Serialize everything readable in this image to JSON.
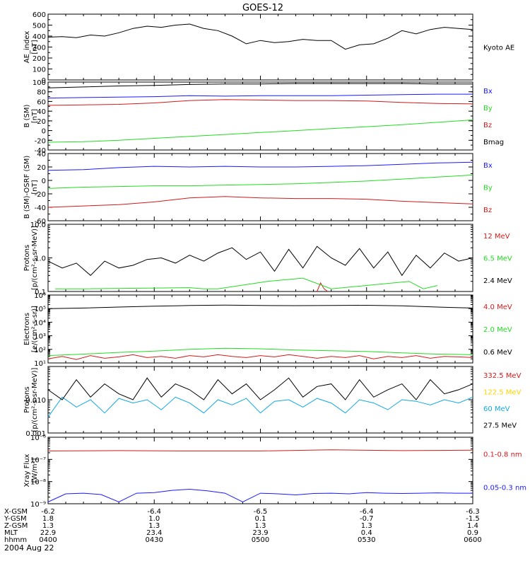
{
  "title": "GOES-12",
  "date_label": "2004 Aug 22",
  "colors": {
    "black": "#000000",
    "blue": "#1a1aff",
    "green": "#22dd22",
    "red": "#d41a1a",
    "yellow": "#ffd200",
    "cyan": "#11a8e6"
  },
  "time_axis": {
    "start": "0400",
    "end": "0600",
    "ticks": [
      "0400",
      "0430",
      "0500",
      "0530",
      "0600"
    ]
  },
  "ephemeris": {
    "rows": [
      {
        "label": "X-GSM",
        "values": [
          "-6.2",
          "-6.4",
          "-6.5",
          "-6.4",
          "-6.3"
        ]
      },
      {
        "label": "Y-GSM",
        "values": [
          "1.8",
          "1.0",
          "0.1",
          "-0.7",
          "-1.5"
        ]
      },
      {
        "label": "Z-GSM",
        "values": [
          "1.3",
          "1.3",
          "1.3",
          "1.3",
          "1.4"
        ]
      },
      {
        "label": "MLT",
        "values": [
          "22.9",
          "23.4",
          "23.9",
          "0.4",
          "0.9"
        ]
      },
      {
        "label": "hhmm",
        "values": [
          "0400",
          "0430",
          "0500",
          "0530",
          "0600"
        ]
      }
    ]
  },
  "chart_data": [
    {
      "type": "line",
      "ylabel": [
        "AE_index",
        "[nT]"
      ],
      "yscale": "linear",
      "ylim": [
        0,
        600
      ],
      "yticks": [
        "0",
        "100",
        "200",
        "300",
        "400",
        "500",
        "600"
      ],
      "series": [
        {
          "name": "Kyoto AE",
          "color": "black",
          "x": [
            0,
            4,
            8,
            12,
            16,
            20,
            24,
            28,
            32,
            36,
            40,
            44,
            48,
            52,
            56,
            60,
            64,
            68,
            72,
            76,
            80,
            84,
            88,
            92,
            96,
            100,
            104,
            108,
            112,
            116,
            120
          ],
          "y": [
            390,
            395,
            385,
            410,
            400,
            430,
            470,
            490,
            480,
            500,
            510,
            470,
            450,
            400,
            330,
            360,
            340,
            350,
            370,
            360,
            360,
            280,
            320,
            330,
            380,
            450,
            420,
            460,
            480,
            470,
            460
          ]
        }
      ]
    },
    {
      "type": "line",
      "ylabel": [
        "B (SM)",
        "[nT]"
      ],
      "yscale": "linear",
      "ylim": [
        -40,
        100
      ],
      "yticks": [
        "-40",
        "-20",
        "0",
        "20",
        "40",
        "60",
        "80",
        "100"
      ],
      "series": [
        {
          "name": "Bx",
          "color": "blue",
          "x": [
            0,
            10,
            20,
            30,
            40,
            50,
            60,
            70,
            80,
            90,
            100,
            110,
            120
          ],
          "y": [
            67,
            68,
            69,
            70,
            72,
            71,
            72,
            72,
            72,
            73,
            74,
            75,
            75
          ]
        },
        {
          "name": "By",
          "color": "green",
          "x": [
            0,
            10,
            20,
            30,
            40,
            50,
            60,
            70,
            80,
            90,
            100,
            110,
            120
          ],
          "y": [
            -24,
            -23,
            -20,
            -16,
            -12,
            -8,
            -4,
            0,
            4,
            8,
            12,
            17,
            22
          ]
        },
        {
          "name": "Bz",
          "color": "red",
          "x": [
            0,
            10,
            20,
            30,
            40,
            50,
            60,
            70,
            80,
            90,
            100,
            110,
            120
          ],
          "y": [
            52,
            53,
            54,
            57,
            62,
            64,
            63,
            62,
            62,
            61,
            58,
            56,
            55
          ]
        },
        {
          "name": "Bmag",
          "color": "black",
          "x": [
            0,
            10,
            20,
            30,
            40,
            50,
            60,
            70,
            80,
            90,
            100,
            110,
            120
          ],
          "y": [
            88,
            90,
            92,
            93,
            95,
            96,
            96,
            97,
            97,
            97,
            97,
            96,
            96
          ]
        }
      ]
    },
    {
      "type": "line",
      "ylabel": [
        "B (SM)-OSRF (SM)",
        "[nT]"
      ],
      "yscale": "linear",
      "ylim": [
        -60,
        40
      ],
      "yticks": [
        "-60",
        "-40",
        "-20",
        "0",
        "20",
        "40"
      ],
      "series": [
        {
          "name": "Bx",
          "color": "blue",
          "x": [
            0,
            10,
            20,
            30,
            40,
            50,
            60,
            70,
            80,
            90,
            100,
            110,
            120
          ],
          "y": [
            15,
            16,
            19,
            21,
            20,
            21,
            20,
            20,
            21,
            22,
            24,
            26,
            27
          ]
        },
        {
          "name": "By",
          "color": "green",
          "x": [
            0,
            10,
            20,
            30,
            40,
            50,
            60,
            70,
            80,
            90,
            100,
            110,
            120
          ],
          "y": [
            -12,
            -10,
            -9,
            -8,
            -8,
            -7,
            -6,
            -5,
            -3,
            -1,
            2,
            5,
            8
          ]
        },
        {
          "name": "Bz",
          "color": "red",
          "x": [
            0,
            10,
            20,
            30,
            40,
            50,
            60,
            70,
            80,
            90,
            100,
            110,
            120
          ],
          "y": [
            -40,
            -38,
            -36,
            -32,
            -26,
            -24,
            -26,
            -27,
            -27,
            -28,
            -31,
            -33,
            -35
          ]
        }
      ]
    },
    {
      "type": "line",
      "ylabel": [
        "Protons",
        "[p/(cm²-s-sr-MeV)]"
      ],
      "yscale": "log",
      "ylim": [
        0.1,
        10
      ],
      "yticks": [
        "0.1",
        "1.0",
        "10.0"
      ],
      "series": [
        {
          "name": "12 MeV",
          "color": "red",
          "x": [
            76,
            77,
            78,
            79
          ],
          "y": [
            0.1,
            0.18,
            0.12,
            0.1
          ]
        },
        {
          "name": "6.5 MeV",
          "color": "green",
          "x": [
            2,
            6,
            10,
            40,
            44,
            48,
            62,
            72,
            80,
            102,
            106,
            110
          ],
          "y": [
            0.12,
            0.12,
            0.12,
            0.13,
            0.12,
            0.12,
            0.2,
            0.25,
            0.12,
            0.2,
            0.12,
            0.15
          ]
        },
        {
          "name": "2.4 MeV",
          "color": "black",
          "x": [
            0,
            4,
            8,
            12,
            16,
            20,
            24,
            28,
            32,
            36,
            40,
            44,
            48,
            52,
            56,
            60,
            64,
            68,
            72,
            76,
            80,
            84,
            88,
            92,
            96,
            100,
            104,
            108,
            112,
            116,
            120
          ],
          "y": [
            0.8,
            0.5,
            0.7,
            0.3,
            0.8,
            0.5,
            0.6,
            0.9,
            1.0,
            0.7,
            1.2,
            0.8,
            1.4,
            2.0,
            0.9,
            1.5,
            0.4,
            1.8,
            0.5,
            2.2,
            1.0,
            0.6,
            1.9,
            0.5,
            1.5,
            0.3,
            1.2,
            0.5,
            1.4,
            0.8,
            1.0
          ]
        }
      ]
    },
    {
      "type": "line",
      "ylabel": [
        "Electrons",
        "[e/(cm²-s-sr)]"
      ],
      "yscale": "log",
      "ylim": [
        10,
        1000000
      ],
      "yticks": [
        "10¹",
        "10²",
        "10³",
        "10⁴",
        "10⁵",
        "10⁶"
      ],
      "series": [
        {
          "name": "4.0 MeV",
          "color": "red",
          "x": [
            0,
            4,
            8,
            12,
            16,
            20,
            24,
            28,
            32,
            36,
            40,
            44,
            48,
            52,
            56,
            60,
            64,
            68,
            72,
            76,
            80,
            84,
            88,
            92,
            96,
            100,
            104,
            108,
            112,
            116,
            120
          ],
          "y": [
            20,
            30,
            18,
            35,
            22,
            28,
            40,
            25,
            30,
            22,
            35,
            28,
            40,
            30,
            25,
            35,
            28,
            40,
            30,
            22,
            30,
            25,
            35,
            20,
            30,
            25,
            35,
            22,
            30,
            28,
            25
          ]
        },
        {
          "name": "2.0 MeV",
          "color": "green",
          "x": [
            0,
            10,
            20,
            30,
            40,
            50,
            60,
            70,
            80,
            90,
            100,
            110,
            120
          ],
          "y": [
            35,
            45,
            60,
            75,
            100,
            120,
            110,
            90,
            80,
            70,
            55,
            45,
            40
          ]
        },
        {
          "name": "0.6 MeV",
          "color": "black",
          "x": [
            0,
            10,
            20,
            30,
            40,
            50,
            60,
            70,
            80,
            90,
            100,
            110,
            120
          ],
          "y": [
            100000,
            110000,
            130000,
            150000,
            170000,
            180000,
            170000,
            165000,
            170000,
            175000,
            160000,
            130000,
            110000
          ]
        }
      ]
    },
    {
      "type": "line",
      "ylabel": [
        "Protons",
        "[p/(cm²-s-sr-MeV)]"
      ],
      "yscale": "log",
      "ylim": [
        0.001,
        0.1
      ],
      "yticks": [
        "0.001",
        "0.010"
      ],
      "series": [
        {
          "name": "332.5 MeV",
          "color": "red",
          "x": [],
          "y": []
        },
        {
          "name": "122.5 MeV",
          "color": "yellow",
          "x": [],
          "y": []
        },
        {
          "name": "60 MeV",
          "color": "cyan",
          "x": [
            0,
            4,
            8,
            12,
            16,
            20,
            24,
            28,
            32,
            36,
            40,
            44,
            48,
            52,
            56,
            60,
            64,
            68,
            72,
            76,
            80,
            84,
            88,
            92,
            96,
            100,
            104,
            108,
            112,
            116,
            120
          ],
          "y": [
            0.003,
            0.012,
            0.006,
            0.01,
            0.004,
            0.011,
            0.008,
            0.01,
            0.005,
            0.012,
            0.008,
            0.004,
            0.01,
            0.007,
            0.011,
            0.004,
            0.009,
            0.01,
            0.006,
            0.011,
            0.008,
            0.004,
            0.01,
            0.008,
            0.005,
            0.01,
            0.009,
            0.007,
            0.01,
            0.008,
            0.012
          ]
        },
        {
          "name": "27.5 MeV",
          "color": "black",
          "x": [
            0,
            4,
            8,
            12,
            16,
            20,
            24,
            28,
            32,
            36,
            40,
            44,
            48,
            52,
            56,
            60,
            64,
            68,
            72,
            76,
            80,
            84,
            88,
            92,
            96,
            100,
            104,
            108,
            112,
            116,
            120
          ],
          "y": [
            0.02,
            0.01,
            0.04,
            0.012,
            0.03,
            0.015,
            0.01,
            0.045,
            0.012,
            0.03,
            0.02,
            0.01,
            0.04,
            0.015,
            0.03,
            0.01,
            0.02,
            0.045,
            0.012,
            0.025,
            0.03,
            0.01,
            0.04,
            0.012,
            0.02,
            0.03,
            0.01,
            0.04,
            0.015,
            0.02,
            0.03
          ]
        }
      ]
    },
    {
      "type": "line",
      "ylabel": [
        "Xray Flux",
        "[W/m²]"
      ],
      "yscale": "log",
      "ylim": [
        1e-09,
        1e-06
      ],
      "yticks": [
        "10⁻⁹",
        "10⁻⁸",
        "10⁻⁷",
        "10⁻⁶"
      ],
      "series": [
        {
          "name": "0.1-0.8 nm",
          "color": "red",
          "x": [
            0,
            20,
            40,
            60,
            80,
            100,
            120
          ],
          "y": [
            2.4e-07,
            2.5e-07,
            2.4e-07,
            2.4e-07,
            2.7e-07,
            2.5e-07,
            2.6e-07
          ]
        },
        {
          "name": "0.05-0.3 nm",
          "color": "blue",
          "x": [
            0,
            5,
            10,
            15,
            20,
            25,
            30,
            35,
            40,
            45,
            50,
            55,
            60,
            65,
            70,
            75,
            80,
            85,
            90,
            95,
            100,
            105,
            110,
            115,
            120
          ],
          "y": [
            1.2e-09,
            2.8e-09,
            3e-09,
            2.6e-09,
            1.2e-09,
            3e-09,
            3.2e-09,
            4e-09,
            4.5e-09,
            3.8e-09,
            3e-09,
            1.2e-09,
            3e-09,
            2.8e-09,
            2.5e-09,
            2.9e-09,
            3e-09,
            2.8e-09,
            3.2e-09,
            3e-09,
            2.9e-09,
            3e-09,
            3.1e-09,
            3e-09,
            3e-09
          ]
        }
      ]
    }
  ]
}
